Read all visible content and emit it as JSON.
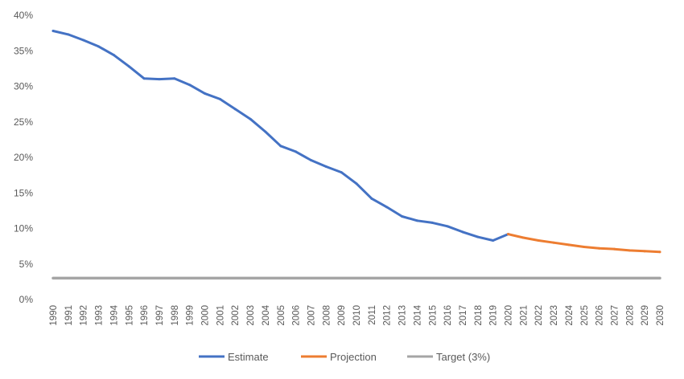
{
  "chart_data": {
    "type": "line",
    "title": "",
    "xlabel": "",
    "ylabel": "",
    "ylim": [
      0,
      40
    ],
    "y_ticks": [
      "0%",
      "5%",
      "10%",
      "15%",
      "20%",
      "25%",
      "30%",
      "35%",
      "40%"
    ],
    "x": [
      "1990",
      "1991",
      "1992",
      "1993",
      "1994",
      "1995",
      "1996",
      "1997",
      "1998",
      "1999",
      "2000",
      "2001",
      "2002",
      "2003",
      "2004",
      "2005",
      "2006",
      "2007",
      "2008",
      "2009",
      "2010",
      "2011",
      "2012",
      "2013",
      "2014",
      "2015",
      "2016",
      "2017",
      "2018",
      "2019",
      "2020",
      "2021",
      "2022",
      "2023",
      "2024",
      "2025",
      "2026",
      "2027",
      "2028",
      "2029",
      "2030"
    ],
    "grid": false,
    "legend_position": "bottom",
    "series": [
      {
        "name": "Estimate",
        "color": "#4472C4",
        "values": [
          37.8,
          37.3,
          36.5,
          35.6,
          34.4,
          32.8,
          31.1,
          31.0,
          31.1,
          30.2,
          29.0,
          28.2,
          26.8,
          25.4,
          23.6,
          21.6,
          20.8,
          19.6,
          18.7,
          17.9,
          16.3,
          14.2,
          13.0,
          11.7,
          11.1,
          10.8,
          10.3,
          9.5,
          8.8,
          8.3,
          9.2,
          null,
          null,
          null,
          null,
          null,
          null,
          null,
          null,
          null,
          null
        ]
      },
      {
        "name": "Projection",
        "color": "#ED7D31",
        "values": [
          null,
          null,
          null,
          null,
          null,
          null,
          null,
          null,
          null,
          null,
          null,
          null,
          null,
          null,
          null,
          null,
          null,
          null,
          null,
          null,
          null,
          null,
          null,
          null,
          null,
          null,
          null,
          null,
          null,
          null,
          9.2,
          8.7,
          8.3,
          8.0,
          7.7,
          7.4,
          7.2,
          7.1,
          6.9,
          6.8,
          6.7
        ]
      },
      {
        "name": "Target (3%)",
        "color": "#A5A5A5",
        "values": [
          3,
          3,
          3,
          3,
          3,
          3,
          3,
          3,
          3,
          3,
          3,
          3,
          3,
          3,
          3,
          3,
          3,
          3,
          3,
          3,
          3,
          3,
          3,
          3,
          3,
          3,
          3,
          3,
          3,
          3,
          3,
          3,
          3,
          3,
          3,
          3,
          3,
          3,
          3,
          3,
          3
        ]
      }
    ]
  }
}
